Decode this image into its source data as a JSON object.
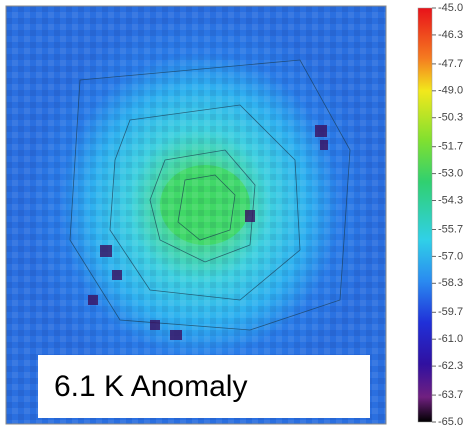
{
  "map": {
    "annotation": "6.1 K Anomaly",
    "colorbar": {
      "ylim": [
        -65,
        -45
      ],
      "yticks": [
        {
          "value": -45,
          "label": "-45.0"
        },
        {
          "value": -46.3,
          "label": "-46.3"
        },
        {
          "value": -47.7,
          "label": "-47.7"
        },
        {
          "value": -49,
          "label": "-49.0"
        },
        {
          "value": -50.3,
          "label": "-50.3"
        },
        {
          "value": -51.7,
          "label": "-51.7"
        },
        {
          "value": -53,
          "label": "-53.0"
        },
        {
          "value": -54.3,
          "label": "-54.3"
        },
        {
          "value": -55.7,
          "label": "-55.7"
        },
        {
          "value": -57,
          "label": "-57.0"
        },
        {
          "value": -58.3,
          "label": "-58.3"
        },
        {
          "value": -59.7,
          "label": "-59.7"
        },
        {
          "value": -61,
          "label": "-61.0"
        },
        {
          "value": -62.3,
          "label": "-62.3"
        },
        {
          "value": -63.7,
          "label": "-63.7"
        },
        {
          "value": -65,
          "label": "-65.0"
        }
      ]
    }
  }
}
